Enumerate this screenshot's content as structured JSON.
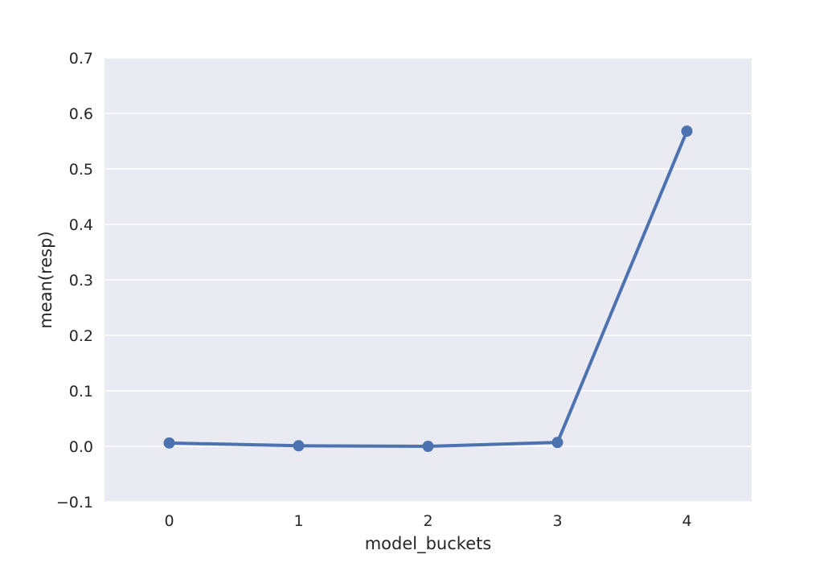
{
  "chart_data": {
    "type": "line",
    "title": "",
    "xlabel": "model_buckets",
    "ylabel": "mean(resp)",
    "categories": [
      "0",
      "1",
      "2",
      "3",
      "4"
    ],
    "series": [
      {
        "values": [
          0.006,
          0.001,
          0.0,
          0.007,
          0.568
        ]
      }
    ],
    "ylim": [
      -0.1,
      0.7
    ],
    "yticks": [
      "−0.1",
      "0.0",
      "0.1",
      "0.2",
      "0.3",
      "0.4",
      "0.5",
      "0.6",
      "0.7"
    ],
    "ytick_values": [
      -0.1,
      0.0,
      0.1,
      0.2,
      0.3,
      0.4,
      0.5,
      0.6,
      0.7
    ],
    "grid": true,
    "colors": {
      "background": "#EAEAF2",
      "grid": "#FFFFFF",
      "line": "#4C72B0",
      "text": "#262626"
    }
  }
}
